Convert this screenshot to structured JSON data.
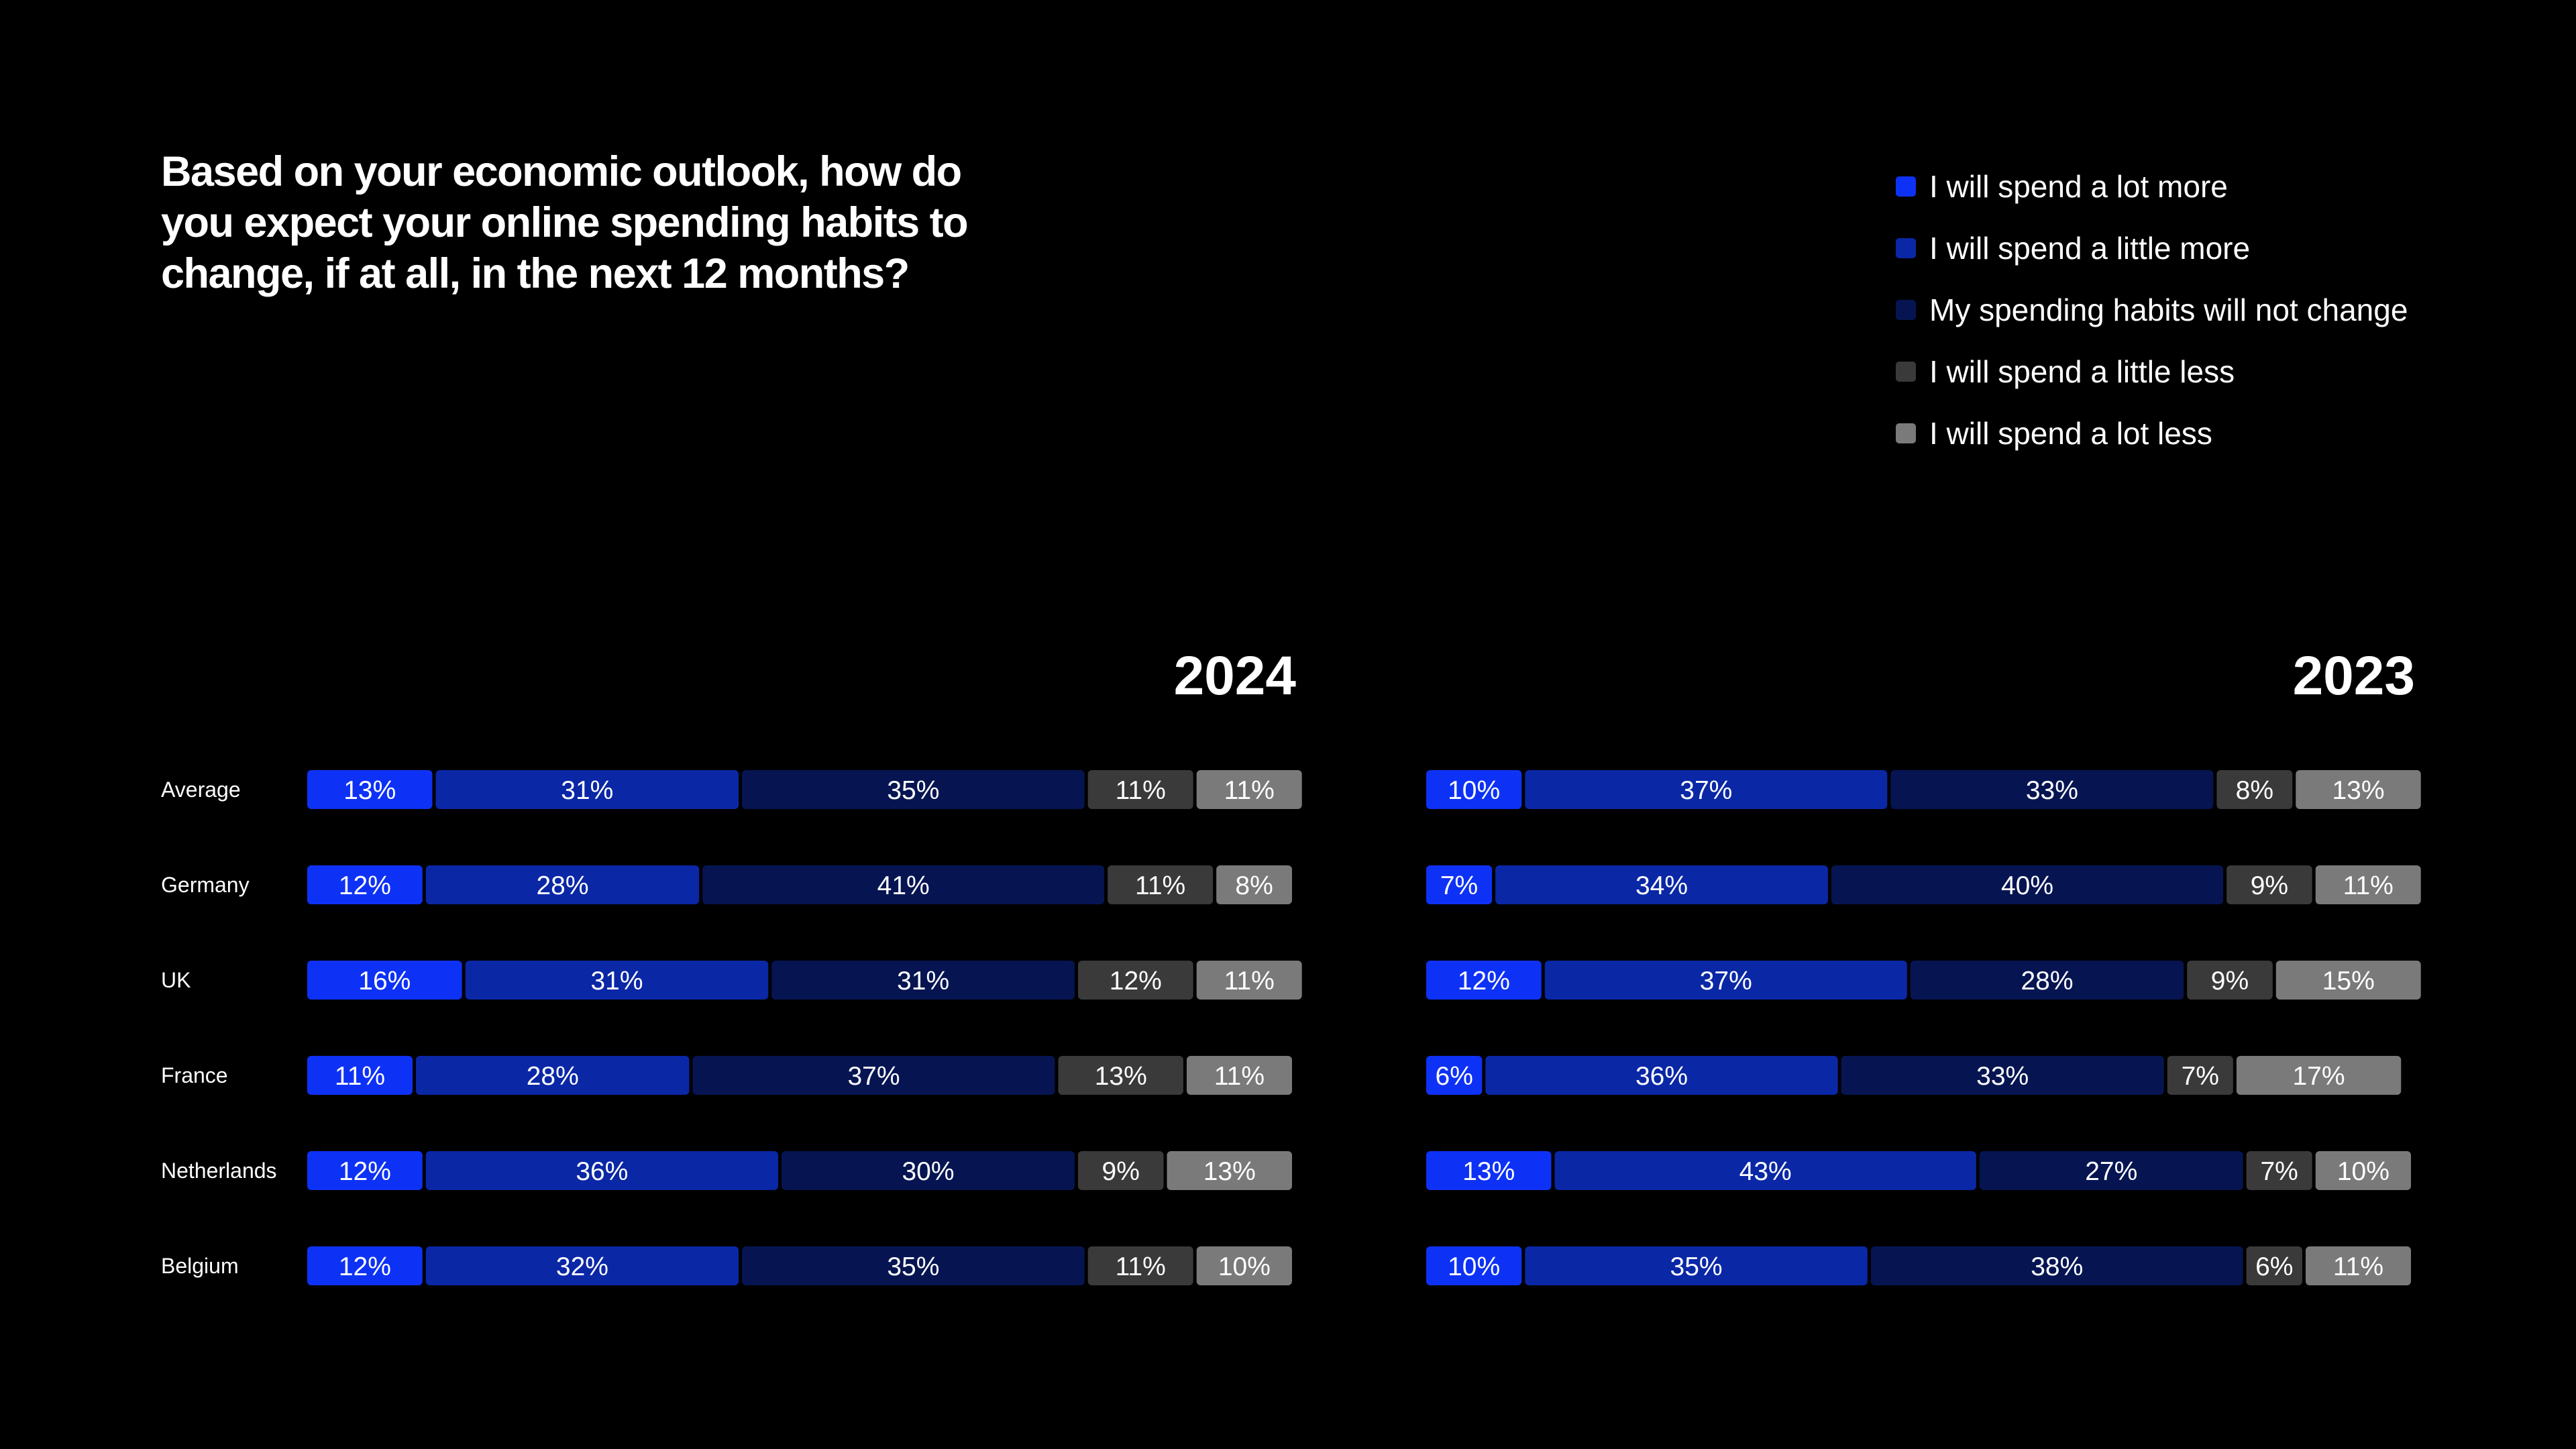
{
  "title": "Based on your economic outlook, how do you expect your online spending habits to change, if at all, in the next 12 months?",
  "chart_data": [
    {
      "type": "bar",
      "orientation": "horizontal",
      "stacked": true,
      "title": "2024",
      "categories": [
        "Average",
        "Germany",
        "UK",
        "France",
        "Netherlands",
        "Belgium"
      ],
      "series": [
        {
          "name": "I will spend a lot more",
          "color": "#0e32f5",
          "values": [
            13,
            12,
            16,
            11,
            12,
            12
          ]
        },
        {
          "name": "I will spend a little more",
          "color": "#0a27a6",
          "values": [
            31,
            28,
            31,
            28,
            36,
            32
          ]
        },
        {
          "name": "My spending habits will not change",
          "color": "#061552",
          "values": [
            35,
            41,
            31,
            37,
            30,
            35
          ]
        },
        {
          "name": "I will spend a little less",
          "color": "#3a3a3a",
          "values": [
            11,
            11,
            12,
            13,
            9,
            11
          ]
        },
        {
          "name": "I will spend a lot less",
          "color": "#7a7a7a",
          "values": [
            11,
            8,
            11,
            11,
            13,
            10
          ]
        }
      ],
      "value_suffix": "%"
    },
    {
      "type": "bar",
      "orientation": "horizontal",
      "stacked": true,
      "title": "2023",
      "categories": [
        "Average",
        "Germany",
        "UK",
        "France",
        "Netherlands",
        "Belgium"
      ],
      "series": [
        {
          "name": "I will spend a lot more",
          "color": "#0e32f5",
          "values": [
            10,
            7,
            12,
            6,
            13,
            10
          ]
        },
        {
          "name": "I will spend a little more",
          "color": "#0a27a6",
          "values": [
            37,
            34,
            37,
            36,
            43,
            35
          ]
        },
        {
          "name": "My spending habits will not change",
          "color": "#061552",
          "values": [
            33,
            40,
            28,
            33,
            27,
            38
          ]
        },
        {
          "name": "I will spend a little less",
          "color": "#3a3a3a",
          "values": [
            8,
            9,
            9,
            7,
            7,
            6
          ]
        },
        {
          "name": "I will spend a lot less",
          "color": "#7a7a7a",
          "values": [
            13,
            11,
            15,
            17,
            10,
            11
          ]
        }
      ],
      "value_suffix": "%"
    }
  ]
}
